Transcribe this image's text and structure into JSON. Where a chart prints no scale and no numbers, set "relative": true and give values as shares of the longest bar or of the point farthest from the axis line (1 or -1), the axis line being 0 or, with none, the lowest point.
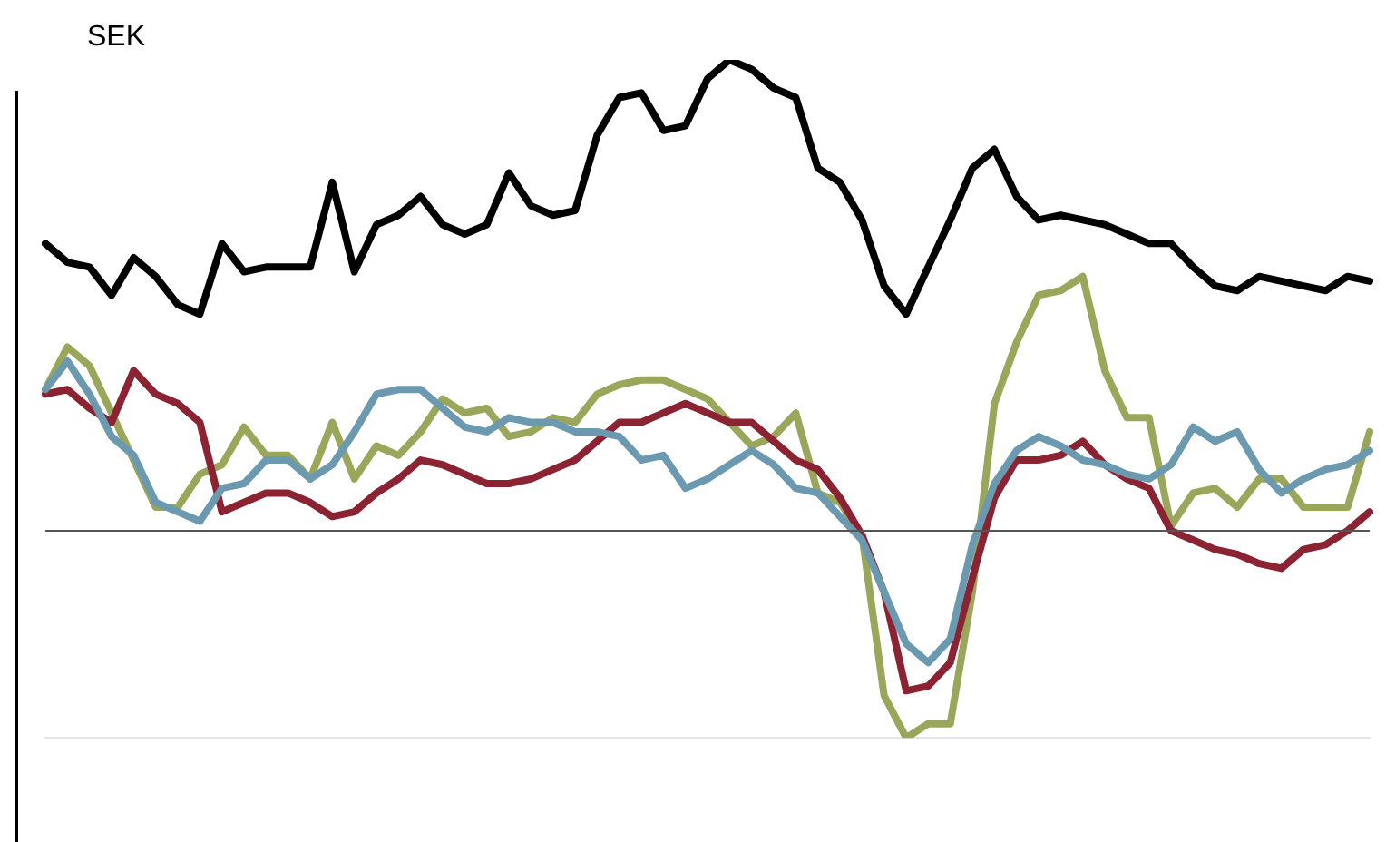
{
  "chart_data": {
    "type": "line",
    "relative": true,
    "legend": false,
    "marker": "none",
    "line_style": "solid",
    "annotations": [
      "SEK"
    ],
    "categories": [
      null,
      null,
      null,
      null,
      null,
      null,
      null,
      null,
      null,
      null,
      null,
      null,
      null,
      null,
      null,
      null,
      null,
      null,
      null,
      null,
      null,
      null,
      null,
      null,
      null,
      null,
      null,
      null,
      null,
      null,
      null,
      null,
      null,
      null,
      null,
      null,
      null,
      null,
      null,
      null,
      null,
      null,
      null,
      null,
      null,
      null,
      null,
      null,
      null,
      null,
      null,
      null,
      null,
      null,
      null,
      null,
      null,
      null,
      null,
      null,
      null
    ],
    "series": [
      {
        "color": "#000000",
        "values": [
          0.61,
          0.57,
          0.56,
          0.5,
          0.58,
          0.54,
          0.48,
          0.46,
          0.61,
          0.55,
          0.56,
          0.56,
          0.56,
          0.74,
          0.55,
          0.65,
          0.67,
          0.71,
          0.65,
          0.63,
          0.65,
          0.76,
          0.69,
          0.67,
          0.68,
          0.84,
          0.92,
          0.93,
          0.85,
          0.86,
          0.96,
          1,
          0.98,
          0.94,
          0.92,
          0.77,
          0.74,
          0.66,
          0.52,
          0.46,
          0.56,
          0.66,
          0.77,
          0.81,
          0.71,
          0.66,
          0.67,
          0.66,
          0.65,
          0.63,
          0.61,
          0.61,
          0.56,
          0.52,
          0.51,
          0.54,
          0.53,
          0.52,
          0.51,
          0.54,
          0.53
        ]
      },
      {
        "color": "#6b9ab0",
        "values": [
          0.3,
          0.36,
          0.29,
          0.2,
          0.16,
          0.06,
          0.04,
          0.02,
          0.09,
          0.1,
          0.15,
          0.15,
          0.11,
          0.14,
          0.21,
          0.29,
          0.3,
          0.3,
          0.26,
          0.22,
          0.21,
          0.24,
          0.23,
          0.23,
          0.21,
          0.21,
          0.2,
          0.15,
          0.16,
          0.09,
          0.11,
          0.14,
          0.17,
          0.14,
          0.09,
          0.08,
          0.03,
          -0.02,
          -0.13,
          -0.24,
          -0.28,
          -0.23,
          -0.03,
          0.1,
          0.17,
          0.2,
          0.18,
          0.15,
          0.14,
          0.12,
          0.11,
          0.14,
          0.22,
          0.19,
          0.21,
          0.13,
          0.08,
          0.11,
          0.13,
          0.14,
          0.17
        ]
      },
      {
        "color": "#8b2332",
        "values": [
          0.29,
          0.3,
          0.26,
          0.23,
          0.34,
          0.29,
          0.27,
          0.23,
          0.04,
          0.06,
          0.08,
          0.08,
          0.06,
          0.03,
          0.04,
          0.08,
          0.11,
          0.15,
          0.14,
          0.12,
          0.1,
          0.1,
          0.11,
          0.13,
          0.15,
          0.19,
          0.23,
          0.23,
          0.25,
          0.27,
          0.25,
          0.23,
          0.23,
          0.19,
          0.15,
          0.13,
          0.07,
          -0.01,
          -0.13,
          -0.34,
          -0.33,
          -0.28,
          -0.1,
          0.07,
          0.15,
          0.15,
          0.16,
          0.19,
          0.14,
          0.11,
          0.09,
          0,
          -0.02,
          -0.04,
          -0.05,
          -0.07,
          -0.08,
          -0.04,
          -0.03,
          0,
          0.04
        ]
      },
      {
        "color": "#9aa65a",
        "values": [
          0.3,
          0.39,
          0.35,
          0.25,
          0.15,
          0.05,
          0.05,
          0.12,
          0.14,
          0.22,
          0.16,
          0.16,
          0.11,
          0.23,
          0.11,
          0.18,
          0.16,
          0.21,
          0.28,
          0.25,
          0.26,
          0.2,
          0.21,
          0.24,
          0.23,
          0.29,
          0.31,
          0.32,
          0.32,
          0.3,
          0.28,
          0.23,
          0.18,
          0.2,
          0.25,
          0.08,
          0.06,
          -0.01,
          -0.35,
          -0.44,
          -0.41,
          -0.41,
          -0.13,
          0.27,
          0.4,
          0.5,
          0.51,
          0.54,
          0.34,
          0.24,
          0.24,
          0.01,
          0.08,
          0.09,
          0.05,
          0.11,
          0.11,
          0.05,
          0.05,
          0.05,
          0.21
        ]
      }
    ]
  }
}
